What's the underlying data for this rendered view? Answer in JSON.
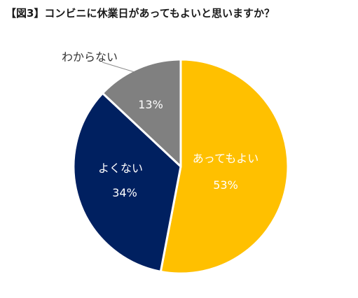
{
  "chart_data": {
    "type": "pie",
    "title": "【図3】コンビニに休業日があってもよいと思いますか？",
    "slices": [
      {
        "label": "あってもよい",
        "value": 53,
        "value_label": "53%",
        "color": "#FFC000",
        "label_color": "#ffffff"
      },
      {
        "label": "よくない",
        "value": 34,
        "value_label": "34%",
        "color": "#002060",
        "label_color": "#ffffff"
      },
      {
        "label": "わからない",
        "value": 13,
        "value_label": "13%",
        "color": "#808080",
        "label_color": "#ffffff"
      }
    ],
    "start": "12 o'clock, clockwise",
    "slice_border_color": "#ffffff",
    "outside_label_color": "#333333"
  }
}
